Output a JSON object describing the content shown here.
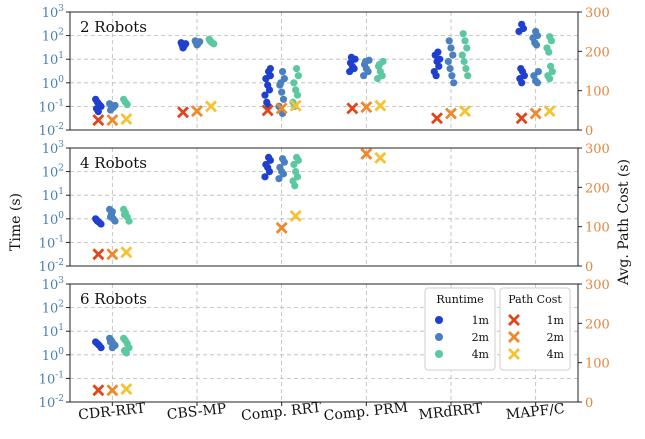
{
  "chart_data": {
    "type": "scatter",
    "categories": [
      "CDR-RRT",
      "CBS-MP",
      "Comp. RRT",
      "Comp. PRM",
      "MRdRRT",
      "MAPF/C"
    ],
    "ylabel_left": "Time (s)",
    "ylabel_right": "Avg. Path Cost (s)",
    "y_left_scale": "log",
    "y_left_range": [
      0.01,
      1000
    ],
    "y_left_ticks": [
      "10^-2",
      "10^-1",
      "10^0",
      "10^1",
      "10^2",
      "10^3"
    ],
    "y_right_range": [
      0,
      300
    ],
    "y_right_ticks": [
      "0",
      "100",
      "200",
      "300"
    ],
    "grid": true,
    "colors": {
      "left_axis": "#4a7fb5",
      "right_axis": "#e8843a",
      "runtime_1m": "#1f3fcf",
      "runtime_2m": "#4a7fc0",
      "runtime_4m": "#5cc8a0",
      "cost_1m": "#e0461b",
      "cost_2m": "#ee8a2a",
      "cost_4m": "#f5c233"
    },
    "legend": {
      "placement": "lower-right of bottom panel",
      "runtime_title": "Runtime",
      "cost_title": "Path Cost",
      "labels": [
        "1m",
        "2m",
        "4m"
      ]
    },
    "panels": [
      {
        "title": "2 Robots",
        "runtime": {
          "1m": [
            [
              0.2,
              0.15,
              0.12,
              0.1,
              0.08,
              0.06
            ],
            [
              40,
              35,
              45,
              50,
              30
            ],
            [
              3,
              2,
              1.5,
              0.8,
              0.5,
              0.3,
              0.15,
              0.1,
              4
            ],
            [
              10,
              7,
              5,
              4,
              3,
              12
            ],
            [
              15,
              8,
              5,
              3,
              2,
              20,
              10
            ],
            [
              300,
              200,
              150,
              4,
              3,
              2,
              1.5,
              1
            ]
          ],
          "2m": [
            [
              0.13,
              0.1,
              0.09,
              0.11,
              0.07
            ],
            [
              50,
              45,
              55,
              60,
              40
            ],
            [
              3,
              1.5,
              0.8,
              0.4,
              0.2,
              0.1,
              1,
              0.05
            ],
            [
              9,
              6,
              4,
              3,
              2,
              8
            ],
            [
              60,
              30,
              15,
              8,
              4,
              2,
              1
            ],
            [
              150,
              100,
              80,
              50,
              40,
              3,
              2,
              1.2,
              1
            ]
          ],
          "4m": [
            [
              0.2,
              0.15,
              0.12
            ],
            [
              60,
              50,
              45,
              70,
              55
            ],
            [
              4,
              2,
              1,
              0.5,
              0.3,
              0.15,
              0.1
            ],
            [
              8,
              5,
              3,
              2,
              1.5,
              6
            ],
            [
              120,
              60,
              30,
              15,
              8,
              4,
              2
            ],
            [
              90,
              60,
              30,
              20,
              5,
              3,
              2,
              1.5
            ]
          ]
        },
        "cost": {
          "1m": [
            25,
            45,
            50,
            55,
            30,
            30
          ],
          "2m": [
            25,
            48,
            55,
            58,
            42,
            42
          ],
          "4m": [
            28,
            60,
            62,
            62,
            48,
            48
          ]
        }
      },
      {
        "title": "4 Robots",
        "runtime": {
          "1m": [
            [
              1.0,
              0.8,
              0.7,
              0.6,
              0.9
            ],
            null,
            [
              400,
              300,
              200,
              150,
              100,
              60
            ],
            null,
            null,
            null
          ],
          "2m": [
            [
              2.5,
              1.5,
              1.0,
              0.8,
              1.2,
              2
            ],
            null,
            [
              350,
              250,
              150,
              100,
              80,
              50
            ],
            null,
            null,
            null
          ],
          "4m": [
            [
              2.5,
              1.8,
              1.2,
              0.8,
              1.5
            ],
            null,
            [
              400,
              300,
              200,
              100,
              60,
              40,
              25
            ],
            null,
            null,
            null
          ]
        },
        "cost": {
          "1m": [
            30,
            null,
            null,
            null,
            null,
            null
          ],
          "2m": [
            30,
            null,
            97,
            285,
            null,
            null
          ],
          "4m": [
            35,
            null,
            127,
            275,
            null,
            null
          ]
        }
      },
      {
        "title": "6 Robots",
        "runtime": {
          "1m": [
            [
              3.5,
              3,
              2.5,
              2
            ],
            null,
            null,
            null,
            null,
            null
          ],
          "2m": [
            [
              5,
              4,
              3,
              2.5,
              3.5,
              2
            ],
            null,
            null,
            null,
            null,
            null
          ],
          "4m": [
            [
              5,
              4,
              3,
              2,
              1.5,
              1.2
            ],
            null,
            null,
            null,
            null,
            null
          ]
        },
        "cost": {
          "1m": [
            30,
            null,
            null,
            null,
            null,
            null
          ],
          "2m": [
            30,
            null,
            null,
            null,
            null,
            null
          ],
          "4m": [
            33,
            null,
            null,
            null,
            null,
            null
          ]
        }
      }
    ]
  }
}
